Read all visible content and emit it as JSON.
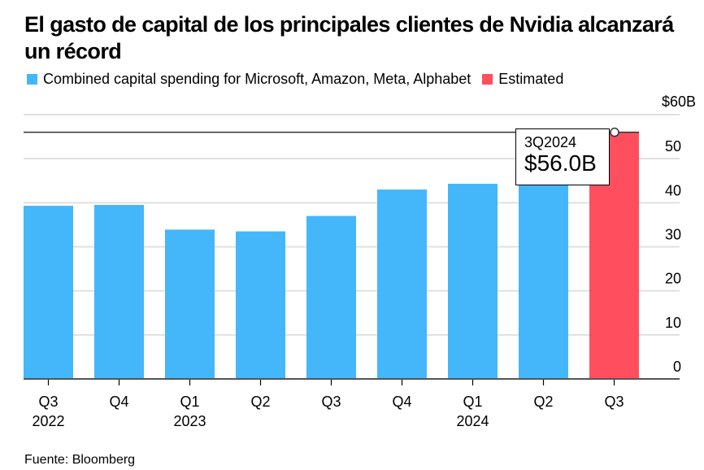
{
  "title": "El gasto de capital de los principales clientes de Nvidia alcanzará un récord",
  "legend": [
    {
      "label": "Combined capital spending for Microsoft, Amazon, Meta, Alphabet",
      "color": "#44b6fa"
    },
    {
      "label": "Estimated",
      "color": "#ff4f5e"
    }
  ],
  "source": "Fuente: Bloomberg",
  "tooltip": {
    "period": "3Q2024",
    "value": "$56.0B"
  },
  "chart_data": {
    "type": "bar",
    "title": "El gasto de capital de los principales clientes de Nvidia alcanzará un récord",
    "xlabel": "",
    "ylabel": "",
    "categories": [
      "Q3 2022",
      "Q4 2022",
      "Q1 2023",
      "Q2 2023",
      "Q3 2023",
      "Q4 2023",
      "Q1 2024",
      "Q2 2024",
      "Q3 2024"
    ],
    "x_tick_labels": [
      {
        "line1": "Q3",
        "line2": "2022"
      },
      {
        "line1": "Q4",
        "line2": ""
      },
      {
        "line1": "Q1",
        "line2": "2023"
      },
      {
        "line1": "Q2",
        "line2": ""
      },
      {
        "line1": "Q3",
        "line2": ""
      },
      {
        "line1": "Q4",
        "line2": ""
      },
      {
        "line1": "Q1",
        "line2": "2024"
      },
      {
        "line1": "Q2",
        "line2": ""
      },
      {
        "line1": "Q3",
        "line2": ""
      }
    ],
    "series": [
      {
        "name": "Combined capital spending for Microsoft, Amazon, Meta, Alphabet",
        "color": "#44b6fa",
        "values": [
          39.3,
          39.5,
          33.9,
          33.5,
          37.0,
          43.0,
          44.3,
          45.0,
          null
        ]
      },
      {
        "name": "Estimated",
        "color": "#ff4f5e",
        "values": [
          null,
          null,
          null,
          null,
          null,
          null,
          null,
          null,
          56.0
        ]
      }
    ],
    "ylim": [
      0,
      60
    ],
    "y_ticks": [
      0,
      10,
      20,
      30,
      40,
      50,
      60
    ],
    "y_tick_labels": [
      "0",
      "10",
      "20",
      "30",
      "40",
      "50",
      "$60B"
    ],
    "y_axis_position": "right",
    "grid": true,
    "reference_line": {
      "value": 56.0,
      "label": "3Q2024"
    },
    "legend_position": "top-left"
  }
}
